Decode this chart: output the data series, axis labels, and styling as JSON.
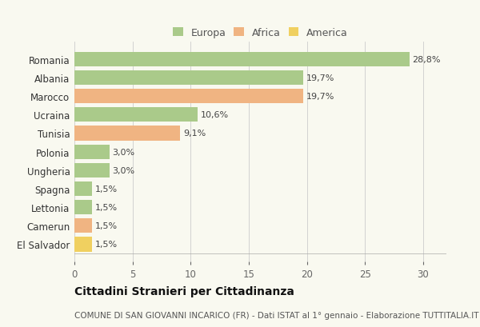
{
  "countries": [
    "Romania",
    "Albania",
    "Marocco",
    "Ucraina",
    "Tunisia",
    "Polonia",
    "Ungheria",
    "Spagna",
    "Lettonia",
    "Camerun",
    "El Salvador"
  ],
  "values": [
    28.8,
    19.7,
    19.7,
    10.6,
    9.1,
    3.0,
    3.0,
    1.5,
    1.5,
    1.5,
    1.5
  ],
  "labels": [
    "28,8%",
    "19,7%",
    "19,7%",
    "10,6%",
    "9,1%",
    "3,0%",
    "3,0%",
    "1,5%",
    "1,5%",
    "1,5%",
    "1,5%"
  ],
  "continents": [
    "Europa",
    "Europa",
    "Africa",
    "Europa",
    "Africa",
    "Europa",
    "Europa",
    "Europa",
    "Europa",
    "Africa",
    "America"
  ],
  "colors": {
    "Europa": "#aaca8a",
    "Africa": "#f0b482",
    "America": "#f0d060"
  },
  "legend_items": [
    "Europa",
    "Africa",
    "America"
  ],
  "xlim": [
    0,
    32
  ],
  "xticks": [
    0,
    5,
    10,
    15,
    20,
    25,
    30
  ],
  "title": "Cittadini Stranieri per Cittadinanza",
  "subtitle": "COMUNE DI SAN GIOVANNI INCARICO (FR) - Dati ISTAT al 1° gennaio - Elaborazione TUTTITALIA.IT",
  "bg_color": "#f9f9f0",
  "bar_height": 0.78,
  "title_fontsize": 10,
  "subtitle_fontsize": 7.5,
  "label_fontsize": 8,
  "tick_fontsize": 8.5,
  "legend_fontsize": 9
}
